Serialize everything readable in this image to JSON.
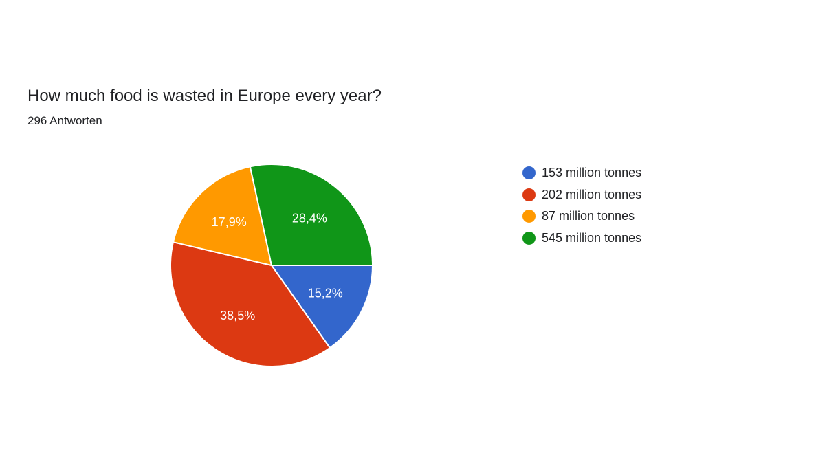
{
  "question": {
    "title": "How much food is wasted in Europe every year?",
    "responses": "296 Antworten"
  },
  "chart_data": {
    "type": "pie",
    "categories": [
      "153 million tonnes",
      "202 million tonnes",
      "87 million tonnes",
      "545 million tonnes"
    ],
    "values": [
      15.2,
      38.5,
      17.9,
      28.4
    ],
    "value_labels": [
      "15,2%",
      "38,5%",
      "17,9%",
      "28,4%"
    ],
    "colors": [
      "#3366cc",
      "#dc3912",
      "#ff9900",
      "#109618"
    ],
    "title": "How much food is wasted in Europe every year?",
    "subtitle": "296 Antworten",
    "legend": "right",
    "start_angle": "3 o'clock, clockwise"
  }
}
